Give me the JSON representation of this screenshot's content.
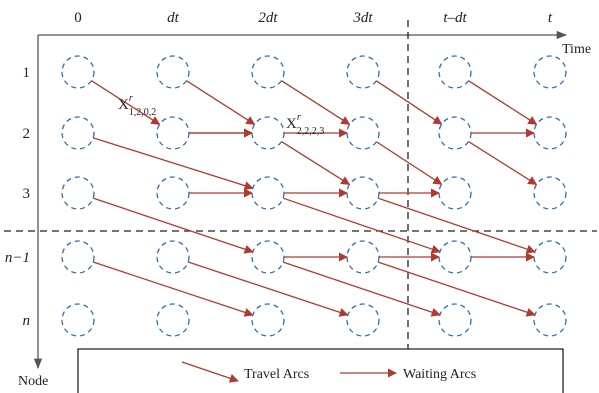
{
  "time_labels": [
    "0",
    "dt",
    "2dt",
    "3dt",
    "t–dt",
    "t"
  ],
  "node_labels": [
    "1",
    "2",
    "3",
    "n−1",
    "n"
  ],
  "axes": {
    "time_label": "Time",
    "node_label": "Node"
  },
  "annotations": {
    "x1": {
      "base": "X",
      "sup": "r",
      "sub": "1,2,0,2"
    },
    "x2": {
      "base": "X",
      "sup": "r",
      "sub": "2,2,2,3"
    }
  },
  "legend": {
    "travel": "Travel Arcs",
    "waiting": "Waiting Arcs"
  },
  "colors": {
    "node_stroke": "#2e6db4",
    "arc": "#b03a2e",
    "axis": "#555555",
    "divider": "#222222"
  },
  "travel_arcs": [
    [
      0,
      0,
      1,
      1
    ],
    [
      1,
      0,
      2,
      1
    ],
    [
      2,
      0,
      3,
      1
    ],
    [
      3,
      0,
      4,
      1
    ],
    [
      4,
      0,
      5,
      1
    ],
    [
      0,
      1,
      2,
      2
    ],
    [
      1,
      1,
      2,
      1
    ],
    [
      2,
      1,
      3,
      2
    ],
    [
      3,
      1,
      4,
      2
    ],
    [
      4,
      1,
      5,
      2
    ],
    [
      0,
      2,
      2,
      3
    ],
    [
      1,
      2,
      2,
      2
    ],
    [
      2,
      2,
      4,
      3
    ],
    [
      3,
      2,
      5,
      3
    ],
    [
      0,
      3,
      2,
      4
    ],
    [
      1,
      3,
      3,
      4
    ],
    [
      2,
      3,
      4,
      4
    ],
    [
      3,
      3,
      5,
      4
    ]
  ],
  "waiting_arcs": [
    [
      1,
      1,
      2,
      1
    ],
    [
      2,
      1,
      3,
      1
    ],
    [
      4,
      1,
      5,
      1
    ],
    [
      2,
      2,
      3,
      2
    ],
    [
      3,
      2,
      4,
      2
    ],
    [
      2,
      3,
      3,
      3
    ],
    [
      3,
      3,
      4,
      3
    ],
    [
      4,
      3,
      5,
      3
    ]
  ]
}
